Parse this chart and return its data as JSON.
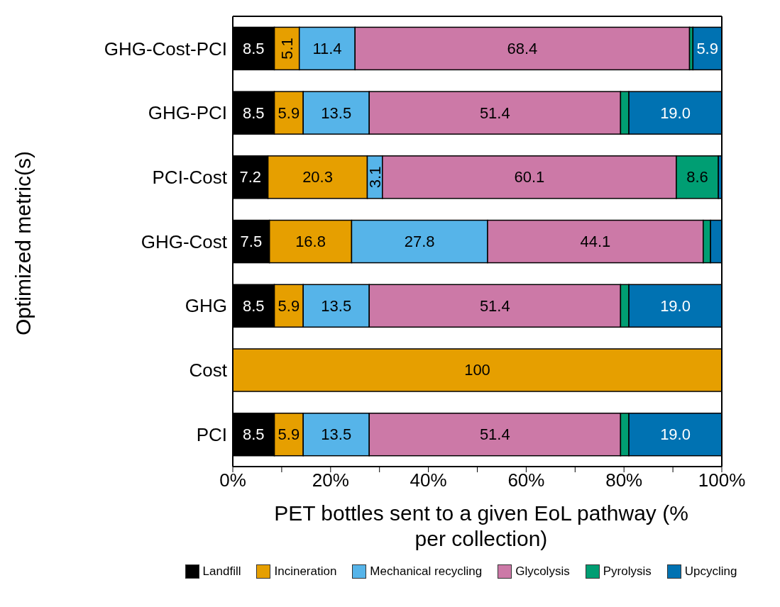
{
  "chart_data": {
    "type": "bar",
    "orientation": "horizontal",
    "stacked": true,
    "xlabel": "PET bottles sent to a given EoL pathway (% per collection)",
    "ylabel": "Optimized metric(s)",
    "categories": [
      "GHG-Cost-PCI",
      "GHG-PCI",
      "PCI-Cost",
      "GHG-Cost",
      "GHG",
      "Cost",
      "PCI"
    ],
    "xlim": [
      0,
      100
    ],
    "xticks": [
      {
        "value": 0,
        "label": "0%"
      },
      {
        "value": 10,
        "label": null
      },
      {
        "value": 20,
        "label": "20%"
      },
      {
        "value": 30,
        "label": null
      },
      {
        "value": 40,
        "label": "40%"
      },
      {
        "value": 50,
        "label": null
      },
      {
        "value": 60,
        "label": "60%"
      },
      {
        "value": 70,
        "label": null
      },
      {
        "value": 80,
        "label": "80%"
      },
      {
        "value": 90,
        "label": null
      },
      {
        "value": 100,
        "label": "100%"
      }
    ],
    "legend": "bottom",
    "series": [
      {
        "name": "Landfill",
        "color": "#000000",
        "values": [
          8.5,
          8.5,
          7.2,
          7.5,
          8.5,
          0,
          8.5
        ],
        "value_labels": [
          "8.5",
          "8.5",
          "7.2",
          "7.5",
          "8.5",
          null,
          "8.5"
        ]
      },
      {
        "name": "Incineration",
        "color": "#e69f00",
        "values": [
          5.1,
          5.9,
          20.3,
          16.8,
          5.9,
          100,
          5.9
        ],
        "value_labels": [
          "5.1",
          "5.9",
          "20.3",
          "16.8",
          "5.9",
          "100",
          "5.9"
        ]
      },
      {
        "name": "Mechanical recycling",
        "color": "#56b4e9",
        "values": [
          11.4,
          13.5,
          3.1,
          27.8,
          13.5,
          0,
          13.5
        ],
        "value_labels": [
          "11.4",
          "13.5",
          "3.1",
          "27.8",
          "13.5",
          null,
          "13.5"
        ]
      },
      {
        "name": "Glycolysis",
        "color": "#cc79a7",
        "values": [
          68.4,
          51.4,
          60.1,
          44.1,
          51.4,
          0,
          51.4
        ],
        "value_labels": [
          "68.4",
          "51.4",
          "60.1",
          "44.1",
          "51.4",
          null,
          "51.4"
        ]
      },
      {
        "name": "Pyrolysis",
        "color": "#009e73",
        "values": [
          0.7,
          1.7,
          8.6,
          1.5,
          1.7,
          0,
          1.7
        ],
        "value_labels": [
          null,
          null,
          "8.6",
          null,
          null,
          null,
          null
        ]
      },
      {
        "name": "Upcycling",
        "color": "#0072b2",
        "values": [
          5.9,
          19.0,
          0.7,
          2.3,
          19.0,
          0,
          19.0
        ],
        "value_labels": [
          "5.9",
          "19.0",
          null,
          null,
          "19.0",
          null,
          "19.0"
        ]
      }
    ]
  }
}
